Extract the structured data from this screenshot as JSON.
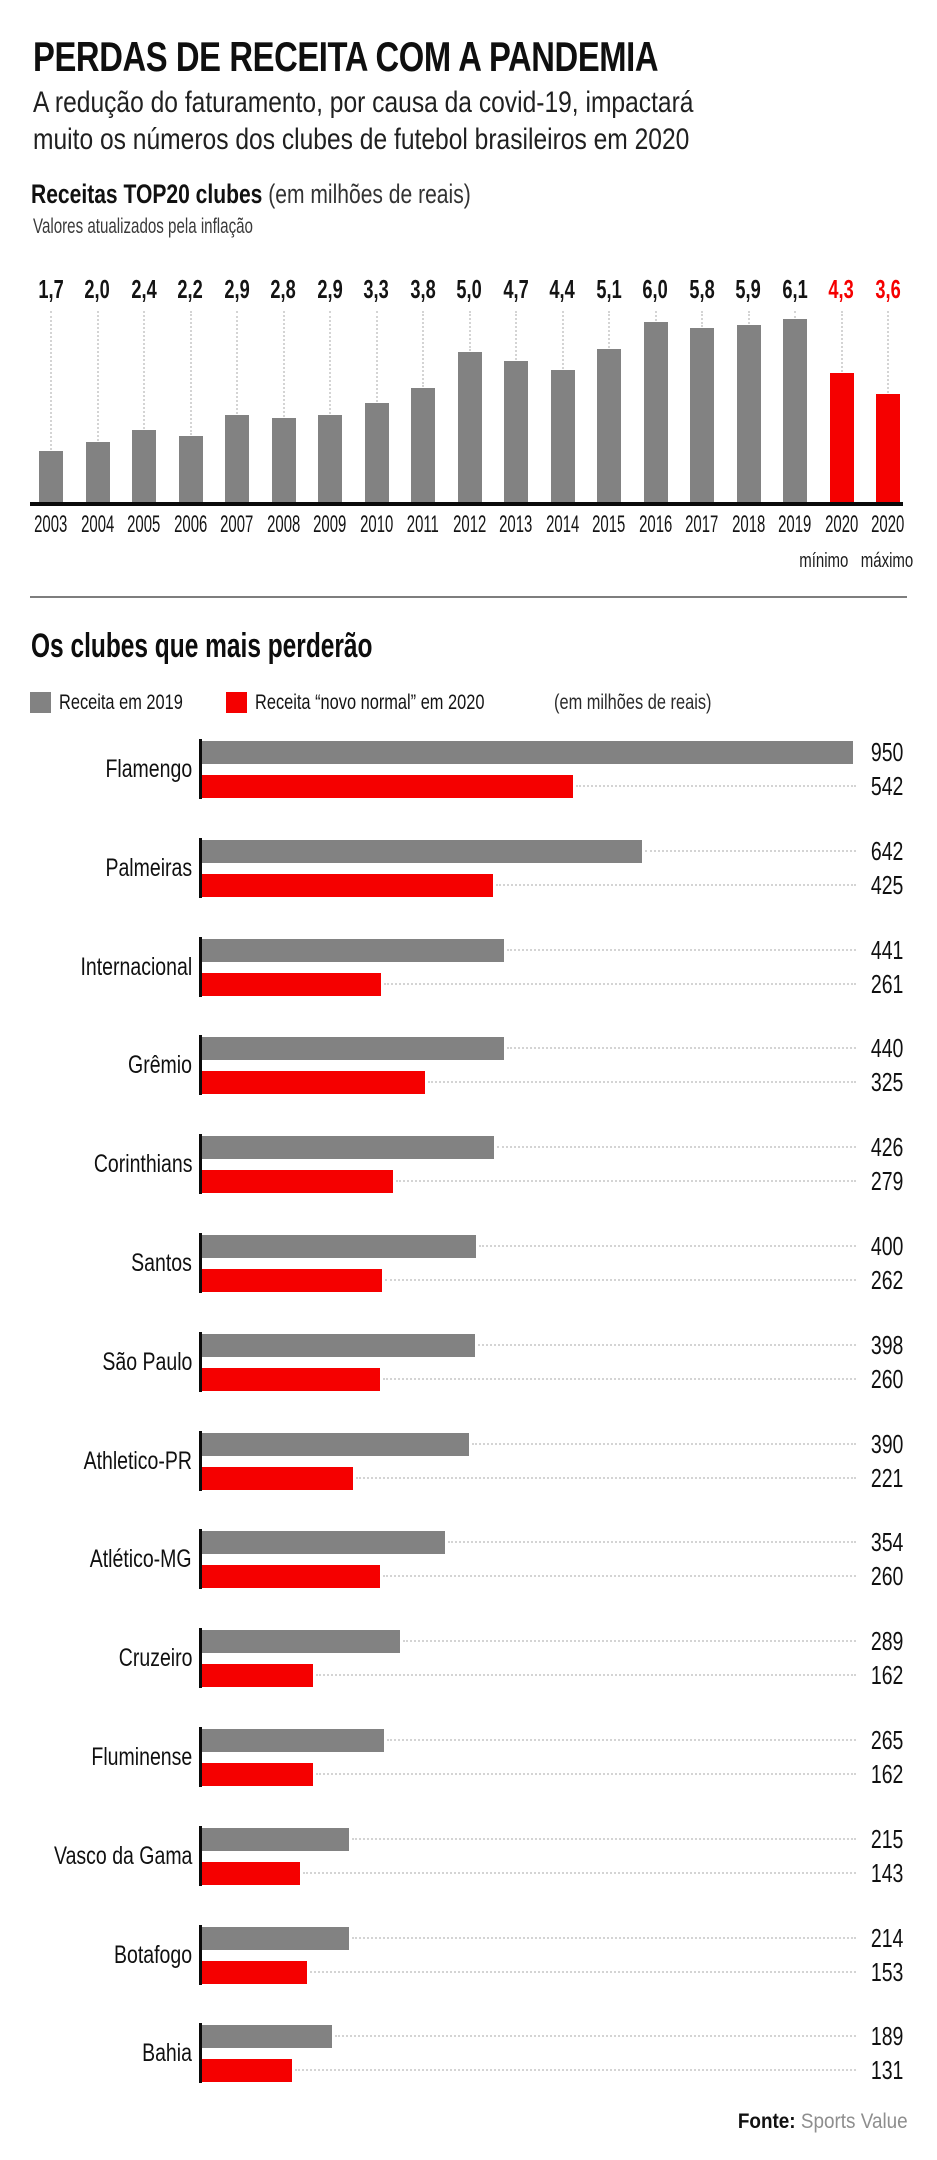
{
  "header": {
    "title": "PERDAS DE RECEITA COM A PANDEMIA",
    "subtitle_lines": [
      "A redução do faturamento, por causa da covid-19, impactará",
      "muito os números dos clubes de futebol brasileiros em 2020"
    ]
  },
  "chart_data": [
    {
      "type": "bar",
      "title": "Receitas TOP20 clubes",
      "unit_note": "(em milhões de reais)",
      "footnote": "Valores atualizados pela inflação",
      "categories": [
        "2003",
        "2004",
        "2005",
        "2006",
        "2007",
        "2008",
        "2009",
        "2010",
        "2011",
        "2012",
        "2013",
        "2014",
        "2015",
        "2016",
        "2017",
        "2018",
        "2019",
        "2020",
        "2020"
      ],
      "values": [
        1.7,
        2.0,
        2.4,
        2.2,
        2.9,
        2.8,
        2.9,
        3.3,
        3.8,
        5.0,
        4.7,
        4.4,
        5.1,
        6.0,
        5.8,
        5.9,
        6.1,
        4.3,
        3.6
      ],
      "value_labels": [
        "1,7",
        "2,0",
        "2,4",
        "2,2",
        "2,9",
        "2,8",
        "2,9",
        "3,3",
        "3,8",
        "5,0",
        "4,7",
        "4,4",
        "5,1",
        "6,0",
        "5,8",
        "5,9",
        "6,1",
        "4,3",
        "3,6"
      ],
      "category_sublabels": [
        "",
        "",
        "",
        "",
        "",
        "",
        "",
        "",
        "",
        "",
        "",
        "",
        "",
        "",
        "",
        "",
        "",
        "mínimo",
        "máximo"
      ],
      "highlight_from_index": 17,
      "bar_color": "#828282",
      "highlight_color": "#f50000",
      "text_color": "#141414",
      "ylim": [
        0,
        6.5
      ],
      "grid": false,
      "legend_position": "none",
      "value_labels_position": "top"
    },
    {
      "type": "bar-horizontal",
      "title": "Os clubes que mais perderão",
      "unit_note": "(em milhões de reais)",
      "legend": [
        {
          "label": "Receita em 2019",
          "color": "#828282"
        },
        {
          "label": "Receita “novo normal” em 2020",
          "color": "#f50000"
        }
      ],
      "categories": [
        "Flamengo",
        "Palmeiras",
        "Internacional",
        "Grêmio",
        "Corinthians",
        "Santos",
        "São Paulo",
        "Athletico-PR",
        "Atlético-MG",
        "Cruzeiro",
        "Fluminense",
        "Vasco da Gama",
        "Botafogo",
        "Bahia"
      ],
      "series": [
        {
          "name": "Receita em 2019",
          "color": "#828282",
          "values": [
            950,
            642,
            441,
            440,
            426,
            400,
            398,
            390,
            354,
            289,
            265,
            215,
            214,
            189
          ]
        },
        {
          "name": "Receita “novo normal” em 2020",
          "color": "#f50000",
          "values": [
            542,
            425,
            261,
            325,
            279,
            262,
            260,
            221,
            260,
            162,
            162,
            143,
            153,
            131
          ]
        }
      ],
      "xlim": [
        0,
        950
      ]
    }
  ],
  "footer": {
    "label": "Fonte:",
    "source": "Sports Value"
  }
}
